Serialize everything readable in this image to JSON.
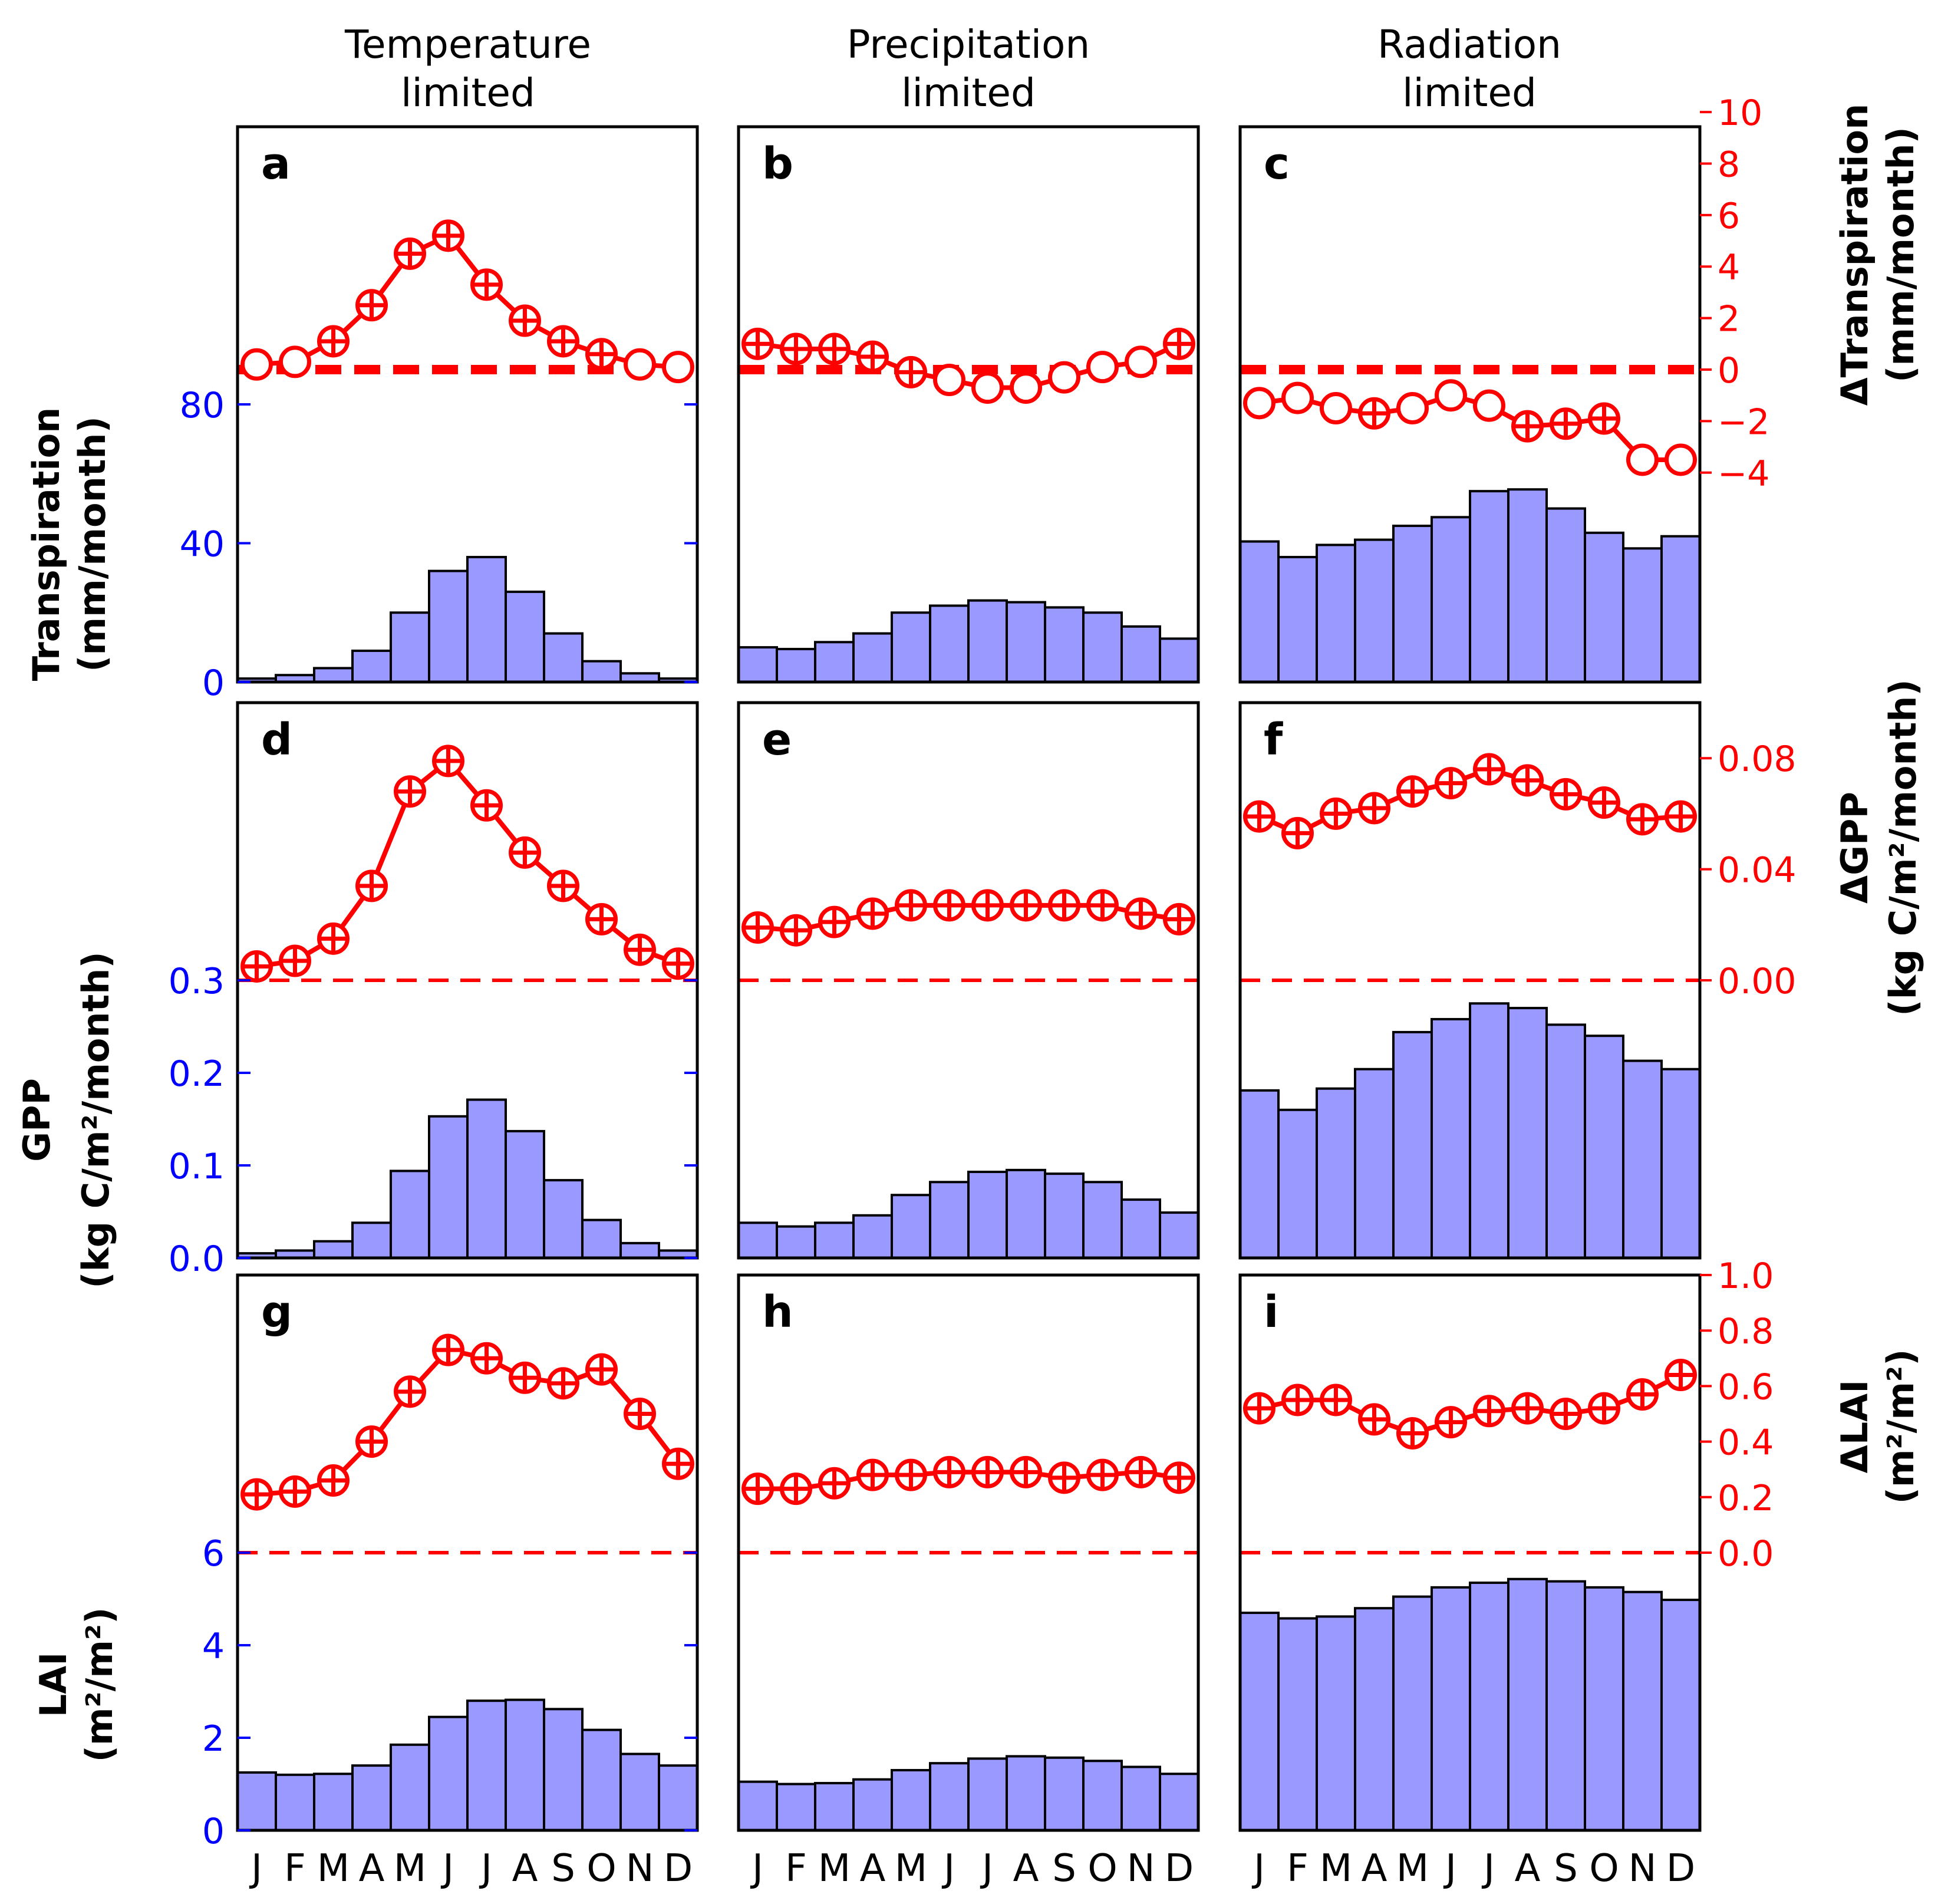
{
  "colors": {
    "bar_fill": "#9999ff",
    "delta_line": "#ff0000",
    "left_axis": "#0000ff",
    "right_axis": "#ff0000",
    "frame": "#000000"
  },
  "months": [
    "J",
    "F",
    "M",
    "A",
    "M",
    "J",
    "J",
    "A",
    "S",
    "O",
    "N",
    "D"
  ],
  "column_titles": [
    {
      "line1": "Temperature",
      "line2": "limited"
    },
    {
      "line1": "Precipitation",
      "line2": "limited"
    },
    {
      "line1": "Radiation",
      "line2": "limited"
    }
  ],
  "row_labels": [
    {
      "line1": "Transpiration",
      "line2": "(mm/month)"
    },
    {
      "line1": "GPP",
      "line2": "(kg C/m²/month)"
    },
    {
      "line1": "LAI",
      "line2": "(m²/m²)"
    }
  ],
  "right_labels": [
    {
      "line1": "ΔTranspiration",
      "line2": "(mm/month)"
    },
    {
      "line1": "ΔGPP",
      "line2": "(kg C/m²/month)"
    },
    {
      "line1": "ΔLAI",
      "line2": "(m²/m²)"
    }
  ],
  "chart_data": [
    {
      "type": "bar+line",
      "panel": "a",
      "variable": "Transpiration",
      "regime": "Temperature limited",
      "categories": [
        "J",
        "F",
        "M",
        "A",
        "M",
        "J",
        "J",
        "A",
        "S",
        "O",
        "N",
        "D"
      ],
      "bar_values": [
        1,
        2,
        4,
        9,
        20,
        32,
        36,
        26,
        14,
        6,
        2.5,
        1
      ],
      "ylim": [
        0,
        160
      ],
      "yticks": [
        0,
        40,
        80
      ],
      "ytick_labels": [
        "0",
        "40",
        "80"
      ],
      "delta_values": [
        0.2,
        0.3,
        1.1,
        2.5,
        4.5,
        5.2,
        3.3,
        1.9,
        1.1,
        0.6,
        0.2,
        0.1
      ],
      "delta_markers": [
        "o",
        "o",
        "p",
        "p",
        "p",
        "p",
        "p",
        "p",
        "p",
        "p",
        "o",
        "o"
      ],
      "delta_ylim": [
        -12.13,
        9.43
      ],
      "dashed_zero_style": "thick"
    },
    {
      "type": "bar+line",
      "panel": "b",
      "variable": "Transpiration",
      "regime": "Precipitation limited",
      "categories": [
        "J",
        "F",
        "M",
        "A",
        "M",
        "J",
        "J",
        "A",
        "S",
        "O",
        "N",
        "D"
      ],
      "bar_values": [
        10,
        9.5,
        11.5,
        14,
        20,
        22,
        23.5,
        23,
        21.5,
        20,
        16,
        12.5
      ],
      "ylim": [
        0,
        160
      ],
      "delta_values": [
        1,
        0.8,
        0.8,
        0.5,
        -0.1,
        -0.4,
        -0.7,
        -0.7,
        -0.3,
        0.1,
        0.3,
        1
      ],
      "delta_markers": [
        "p",
        "p",
        "p",
        "p",
        "p",
        "o",
        "o",
        "o",
        "o",
        "o",
        "o",
        "p"
      ],
      "delta_ylim": [
        -12.13,
        9.43
      ],
      "dashed_zero_style": "thick"
    },
    {
      "type": "bar+line",
      "panel": "c",
      "variable": "Transpiration",
      "regime": "Radiation limited",
      "categories": [
        "J",
        "F",
        "M",
        "A",
        "M",
        "J",
        "J",
        "A",
        "S",
        "O",
        "N",
        "D"
      ],
      "bar_values": [
        40.5,
        36,
        39.5,
        41,
        45,
        47.5,
        55,
        55.5,
        50,
        43,
        38.5,
        42
      ],
      "ylim": [
        0,
        160
      ],
      "delta_values": [
        -1.3,
        -1.1,
        -1.5,
        -1.7,
        -1.5,
        -1.0,
        -1.4,
        -2.2,
        -2.1,
        -1.9,
        -3.5,
        -3.5
      ],
      "delta_markers": [
        "o",
        "o",
        "o",
        "p",
        "o",
        "o",
        "o",
        "p",
        "p",
        "p",
        "o",
        "o"
      ],
      "delta_ylim": [
        -12.13,
        9.43
      ],
      "right_yticks": [
        -4,
        -2,
        0,
        2,
        4,
        6,
        8,
        10
      ],
      "right_tick_labels": [
        "−4",
        "−2",
        "0",
        "2",
        "4",
        "6",
        "8",
        "10"
      ],
      "dashed_zero_style": "thick"
    },
    {
      "type": "bar+line",
      "panel": "d",
      "variable": "GPP",
      "regime": "Temperature limited",
      "categories": [
        "J",
        "F",
        "M",
        "A",
        "M",
        "J",
        "J",
        "A",
        "S",
        "O",
        "N",
        "D"
      ],
      "bar_values": [
        0.005,
        0.008,
        0.018,
        0.038,
        0.094,
        0.153,
        0.171,
        0.137,
        0.084,
        0.041,
        0.016,
        0.008
      ],
      "ylim": [
        0,
        0.6
      ],
      "yticks": [
        0,
        0.1,
        0.2,
        0.3
      ],
      "ytick_labels": [
        "0.0",
        "0.1",
        "0.2",
        "0.3"
      ],
      "delta_values": [
        0.005,
        0.007,
        0.015,
        0.034,
        0.068,
        0.079,
        0.063,
        0.046,
        0.034,
        0.022,
        0.011,
        0.006
      ],
      "delta_markers": [
        "p",
        "p",
        "p",
        "p",
        "p",
        "p",
        "p",
        "p",
        "p",
        "p",
        "p",
        "p"
      ],
      "delta_ylim": [
        -0.1,
        0.1
      ],
      "dashed_zero_style": "thin"
    },
    {
      "type": "bar+line",
      "panel": "e",
      "variable": "GPP",
      "regime": "Precipitation limited",
      "categories": [
        "J",
        "F",
        "M",
        "A",
        "M",
        "J",
        "J",
        "A",
        "S",
        "O",
        "N",
        "D"
      ],
      "bar_values": [
        0.038,
        0.034,
        0.038,
        0.046,
        0.068,
        0.082,
        0.093,
        0.095,
        0.091,
        0.082,
        0.063,
        0.049
      ],
      "ylim": [
        0,
        0.6
      ],
      "delta_values": [
        0.019,
        0.018,
        0.021,
        0.024,
        0.027,
        0.027,
        0.027,
        0.027,
        0.027,
        0.027,
        0.024,
        0.022
      ],
      "delta_markers": [
        "p",
        "p",
        "p",
        "p",
        "p",
        "p",
        "p",
        "p",
        "p",
        "p",
        "p",
        "p"
      ],
      "delta_ylim": [
        -0.1,
        0.1
      ],
      "dashed_zero_style": "thin"
    },
    {
      "type": "bar+line",
      "panel": "f",
      "variable": "GPP",
      "regime": "Radiation limited",
      "categories": [
        "J",
        "F",
        "M",
        "A",
        "M",
        "J",
        "J",
        "A",
        "S",
        "O",
        "N",
        "D"
      ],
      "bar_values": [
        0.181,
        0.16,
        0.183,
        0.204,
        0.244,
        0.258,
        0.275,
        0.27,
        0.252,
        0.24,
        0.213,
        0.204
      ],
      "ylim": [
        0,
        0.6
      ],
      "delta_values": [
        0.059,
        0.053,
        0.06,
        0.062,
        0.068,
        0.071,
        0.076,
        0.072,
        0.067,
        0.064,
        0.058,
        0.059
      ],
      "delta_markers": [
        "p",
        "p",
        "p",
        "p",
        "p",
        "p",
        "p",
        "p",
        "p",
        "p",
        "p",
        "p"
      ],
      "delta_ylim": [
        -0.1,
        0.1
      ],
      "right_yticks": [
        0,
        0.04,
        0.08
      ],
      "right_tick_labels": [
        "0.00",
        "0.04",
        "0.08"
      ],
      "dashed_zero_style": "thin"
    },
    {
      "type": "bar+line",
      "panel": "g",
      "variable": "LAI",
      "regime": "Temperature limited",
      "categories": [
        "J",
        "F",
        "M",
        "A",
        "M",
        "J",
        "J",
        "A",
        "S",
        "O",
        "N",
        "D"
      ],
      "bar_values": [
        1.25,
        1.2,
        1.22,
        1.4,
        1.85,
        2.45,
        2.8,
        2.82,
        2.62,
        2.17,
        1.65,
        1.4
      ],
      "ylim": [
        0,
        12
      ],
      "yticks": [
        0,
        2,
        4,
        6
      ],
      "ytick_labels": [
        "0",
        "2",
        "4",
        "6"
      ],
      "delta_values": [
        0.21,
        0.22,
        0.26,
        0.4,
        0.58,
        0.73,
        0.7,
        0.63,
        0.61,
        0.66,
        0.5,
        0.32
      ],
      "delta_markers": [
        "p",
        "p",
        "p",
        "p",
        "p",
        "p",
        "p",
        "p",
        "p",
        "p",
        "p",
        "p"
      ],
      "delta_ylim": [
        -1,
        1
      ],
      "dashed_zero_style": "thin"
    },
    {
      "type": "bar+line",
      "panel": "h",
      "variable": "LAI",
      "regime": "Precipitation limited",
      "categories": [
        "J",
        "F",
        "M",
        "A",
        "M",
        "J",
        "J",
        "A",
        "S",
        "O",
        "N",
        "D"
      ],
      "bar_values": [
        1.05,
        1.0,
        1.02,
        1.1,
        1.3,
        1.45,
        1.55,
        1.6,
        1.57,
        1.5,
        1.37,
        1.22
      ],
      "ylim": [
        0,
        12
      ],
      "delta_values": [
        0.23,
        0.23,
        0.25,
        0.28,
        0.28,
        0.29,
        0.29,
        0.29,
        0.27,
        0.28,
        0.29,
        0.27
      ],
      "delta_markers": [
        "p",
        "p",
        "p",
        "p",
        "p",
        "p",
        "p",
        "p",
        "p",
        "p",
        "p",
        "p"
      ],
      "delta_ylim": [
        -1,
        1
      ],
      "dashed_zero_style": "thin"
    },
    {
      "type": "bar+line",
      "panel": "i",
      "variable": "LAI",
      "regime": "Radiation limited",
      "categories": [
        "J",
        "F",
        "M",
        "A",
        "M",
        "J",
        "J",
        "A",
        "S",
        "O",
        "N",
        "D"
      ],
      "bar_values": [
        4.7,
        4.58,
        4.62,
        4.8,
        5.05,
        5.25,
        5.35,
        5.43,
        5.38,
        5.25,
        5.15,
        4.98
      ],
      "ylim": [
        0,
        12
      ],
      "delta_values": [
        0.52,
        0.55,
        0.55,
        0.48,
        0.43,
        0.47,
        0.51,
        0.52,
        0.5,
        0.52,
        0.57,
        0.64
      ],
      "delta_markers": [
        "p",
        "p",
        "p",
        "p",
        "p",
        "p",
        "p",
        "p",
        "p",
        "p",
        "p",
        "p"
      ],
      "delta_ylim": [
        -1,
        1
      ],
      "right_yticks": [
        0,
        0.2,
        0.4,
        0.6,
        0.8,
        1.0
      ],
      "right_tick_labels": [
        "0.0",
        "0.2",
        "0.4",
        "0.6",
        "0.8",
        "1.0"
      ],
      "dashed_zero_style": "thin"
    }
  ]
}
